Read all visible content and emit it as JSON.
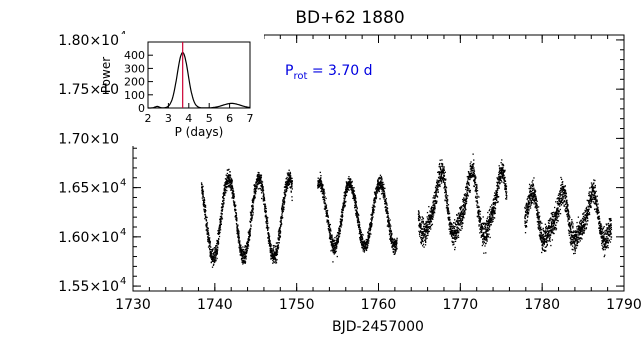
{
  "chart_data": {
    "type": "scatter",
    "title": "BD+62 1880",
    "xlabel": "BJD-2457000",
    "ylabel": "",
    "xlim": [
      1730,
      1790
    ],
    "ylim": [
      15450,
      18050
    ],
    "x_ticks": [
      "1730",
      "1740",
      "1750",
      "1760",
      "1770",
      "1780",
      "1790"
    ],
    "y_ticks": [
      {
        "mant": "1.55×10",
        "exp": "4",
        "value": 15500
      },
      {
        "mant": "1.60×10",
        "exp": "4",
        "value": 16000
      },
      {
        "mant": "1.65×10",
        "exp": "4",
        "value": 16500
      },
      {
        "mant": "1.70×10",
        "exp": "4",
        "value": 17000
      },
      {
        "mant": "1.75×10",
        "exp": "4",
        "value": 17500
      },
      {
        "mant": "1.80×10",
        "exp": "4",
        "value": 18000
      }
    ],
    "segments": [
      {
        "start": 1738.3,
        "end": 1749.4,
        "mean": 16200,
        "amp": 400,
        "scatter": 60
      },
      {
        "start": 1752.5,
        "end": 1762.2,
        "mean": 16230,
        "amp": 320,
        "scatter": 55
      },
      {
        "start": 1764.8,
        "end": 1775.6,
        "mean": 16320,
        "amp": 300,
        "scatter": 90
      },
      {
        "start": 1777.8,
        "end": 1788.4,
        "mean": 16190,
        "amp": 220,
        "scatter": 90
      }
    ],
    "period_days": 3.7,
    "annotation": {
      "main": "P",
      "sub": "rot",
      "rest": "= 3.70 d"
    },
    "inset": {
      "type": "line",
      "xlabel": "P (days)",
      "ylabel": "Power",
      "xlim": [
        2,
        7
      ],
      "ylim": [
        0,
        500
      ],
      "x_ticks": [
        "2",
        "3",
        "4",
        "5",
        "6",
        "7"
      ],
      "y_ticks": [
        "0",
        "100",
        "200",
        "300",
        "400"
      ],
      "peak_x": 3.7,
      "peak_y": 420,
      "marker_color": "#cc0033"
    }
  }
}
